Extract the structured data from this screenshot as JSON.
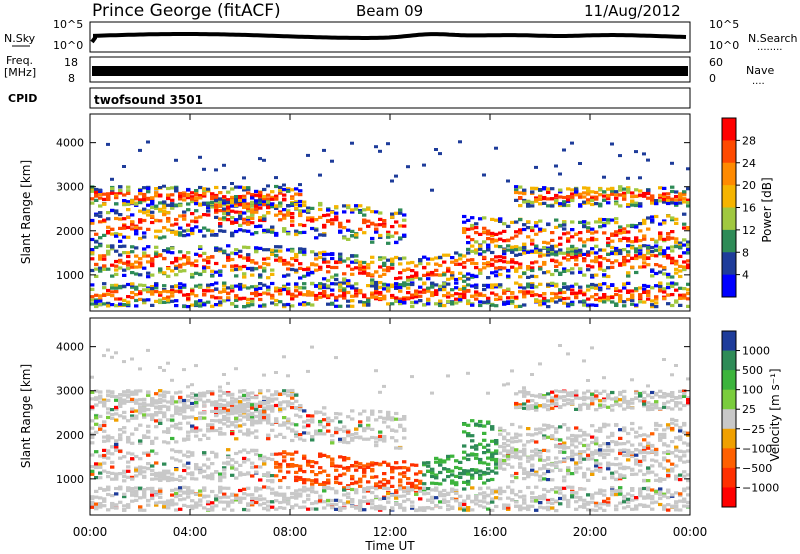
{
  "header": {
    "station": "Prince George (fitACF)",
    "beam": "Beam 09",
    "date": "11/Aug/2012"
  },
  "noise_panel": {
    "left_label": "N.Sky",
    "left_ticks": [
      "10^5",
      "10^0"
    ],
    "right_ticks": [
      "10^5",
      "10^0"
    ],
    "right_label": "N.Search",
    "right_dots": "........"
  },
  "freq_panel": {
    "left_label_1": "Freq.",
    "left_label_2": "[MHz]",
    "left_ticks": [
      "18",
      "8"
    ],
    "right_ticks": [
      "60",
      "0"
    ],
    "right_label": "Nave",
    "right_dots": "...."
  },
  "cpid_panel": {
    "label": "CPID",
    "program": "twofsound 3501"
  },
  "power_panel": {
    "ylabel": "Slant Range [km]",
    "yticks": [
      "4000",
      "3000",
      "2000",
      "1000"
    ],
    "colorbar_label": "Power [dB]",
    "colorbar_ticks": [
      "28",
      "24",
      "20",
      "16",
      "12",
      "8",
      "4"
    ],
    "colorbar_colors": [
      "#ff0000",
      "#ff4a00",
      "#ff8a00",
      "#f5b400",
      "#a0c840",
      "#2e8b57",
      "#1e3c9a",
      "#0000ff"
    ]
  },
  "velocity_panel": {
    "ylabel": "Slant Range [km]",
    "yticks": [
      "4000",
      "3000",
      "2000",
      "1000"
    ],
    "colorbar_label": "Velocity [m s⁻¹]",
    "colorbar_ticks": [
      "1000",
      "500",
      "100",
      "25",
      "−25",
      "−100",
      "−500",
      "−1000"
    ],
    "colorbar_colors": [
      "#1e3c9a",
      "#2e8b57",
      "#3cb43c",
      "#7acc3c",
      "#c8c8c8",
      "#f0a000",
      "#ff6000",
      "#ff3000",
      "#ff0000"
    ]
  },
  "xaxis": {
    "ticks": [
      "00:00",
      "04:00",
      "08:00",
      "12:00",
      "16:00",
      "20:00",
      "00:00"
    ],
    "label": "Time UT"
  },
  "chart_data": [
    {
      "type": "line",
      "title": "Prince George (fitACF)",
      "xlabel": "Time UT",
      "ylabel": "N.Sky",
      "yscale": "log",
      "ylim": [
        1,
        100000
      ],
      "series": [
        {
          "values_description_free": true
        }
      ]
    },
    {
      "type": "heatmap",
      "xlabel": "Time UT",
      "ylabel": "Slant Range [km]",
      "ylim": [
        180,
        4500
      ],
      "xlim": [
        "00:00",
        "24:00"
      ],
      "colorbar": "Power [dB]",
      "colorbar_range": [
        0,
        30
      ]
    },
    {
      "type": "heatmap",
      "xlabel": "Time UT",
      "ylabel": "Slant Range [km]",
      "ylim": [
        180,
        4500
      ],
      "xlim": [
        "00:00",
        "24:00"
      ],
      "colorbar": "Velocity [m s⁻¹]",
      "colorbar_range": [
        -1000,
        1000
      ]
    }
  ]
}
